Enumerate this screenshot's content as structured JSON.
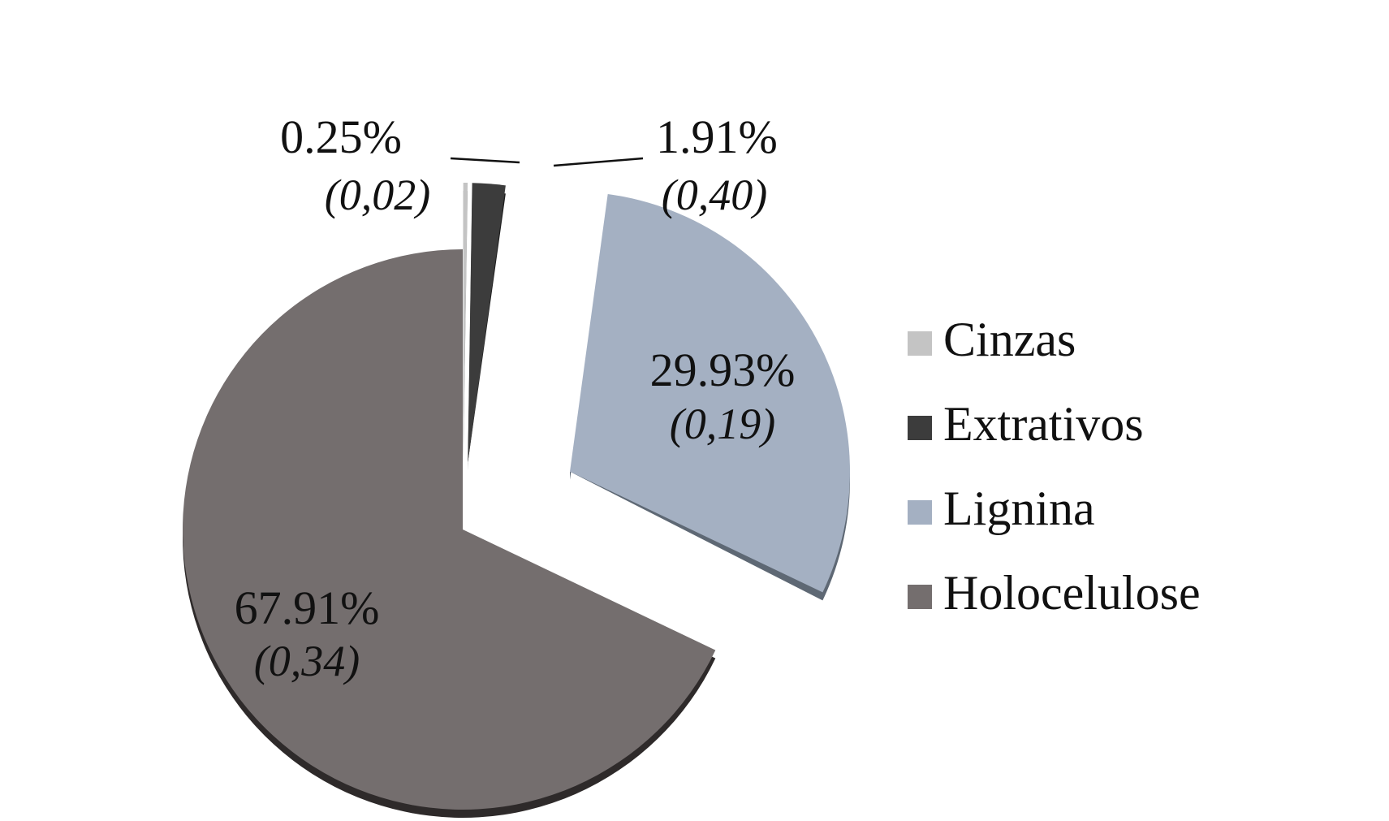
{
  "chart_data": {
    "type": "pie",
    "title": "",
    "legend_position": "right",
    "slices": [
      {
        "name": "Cinzas",
        "value": 0.25,
        "label": "0.25%",
        "sd": "(0,02)",
        "color": "#c4c4c4",
        "side": "#9a9a9a"
      },
      {
        "name": "Extrativos",
        "value": 1.91,
        "label": "1.91%",
        "sd": "(0,40)",
        "color": "#3c3c3c",
        "side": "#1e1e1e"
      },
      {
        "name": "Lignina",
        "value": 29.93,
        "label": "29.93%",
        "sd": "(0,19)",
        "color": "#a4b0c2",
        "side": "#5e6874"
      },
      {
        "name": "Holocelulose",
        "value": 67.91,
        "label": "67.91%",
        "sd": "(0,34)",
        "color": "#746e6e",
        "side": "#2e2a2a"
      }
    ]
  }
}
